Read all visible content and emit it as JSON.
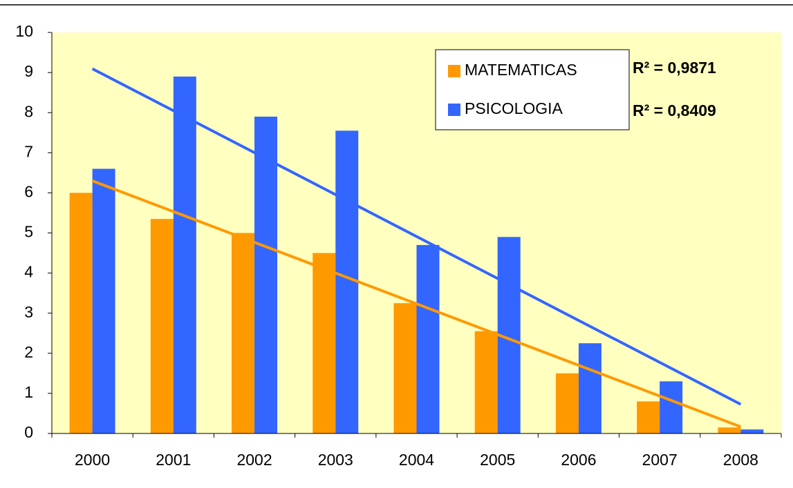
{
  "chart_data": {
    "type": "bar",
    "categories": [
      "2000",
      "2001",
      "2002",
      "2003",
      "2004",
      "2005",
      "2006",
      "2007",
      "2008"
    ],
    "series": [
      {
        "name": "MATEMATICAS",
        "color": "#ff9900",
        "values": [
          6.0,
          5.35,
          5.0,
          4.5,
          3.25,
          2.55,
          1.5,
          0.8,
          0.15
        ]
      },
      {
        "name": "PSICOLOGIA",
        "color": "#3366ff",
        "values": [
          6.6,
          8.9,
          7.9,
          7.55,
          4.7,
          4.9,
          2.25,
          1.3,
          0.1
        ]
      }
    ],
    "annotations": [
      "R² = 0,9871",
      "R² = 0,8409"
    ],
    "trendline": true,
    "ylim": [
      0,
      10
    ],
    "yticks": [
      0,
      1,
      2,
      3,
      4,
      5,
      6,
      7,
      8,
      9,
      10
    ],
    "background": "#ffffc0"
  }
}
